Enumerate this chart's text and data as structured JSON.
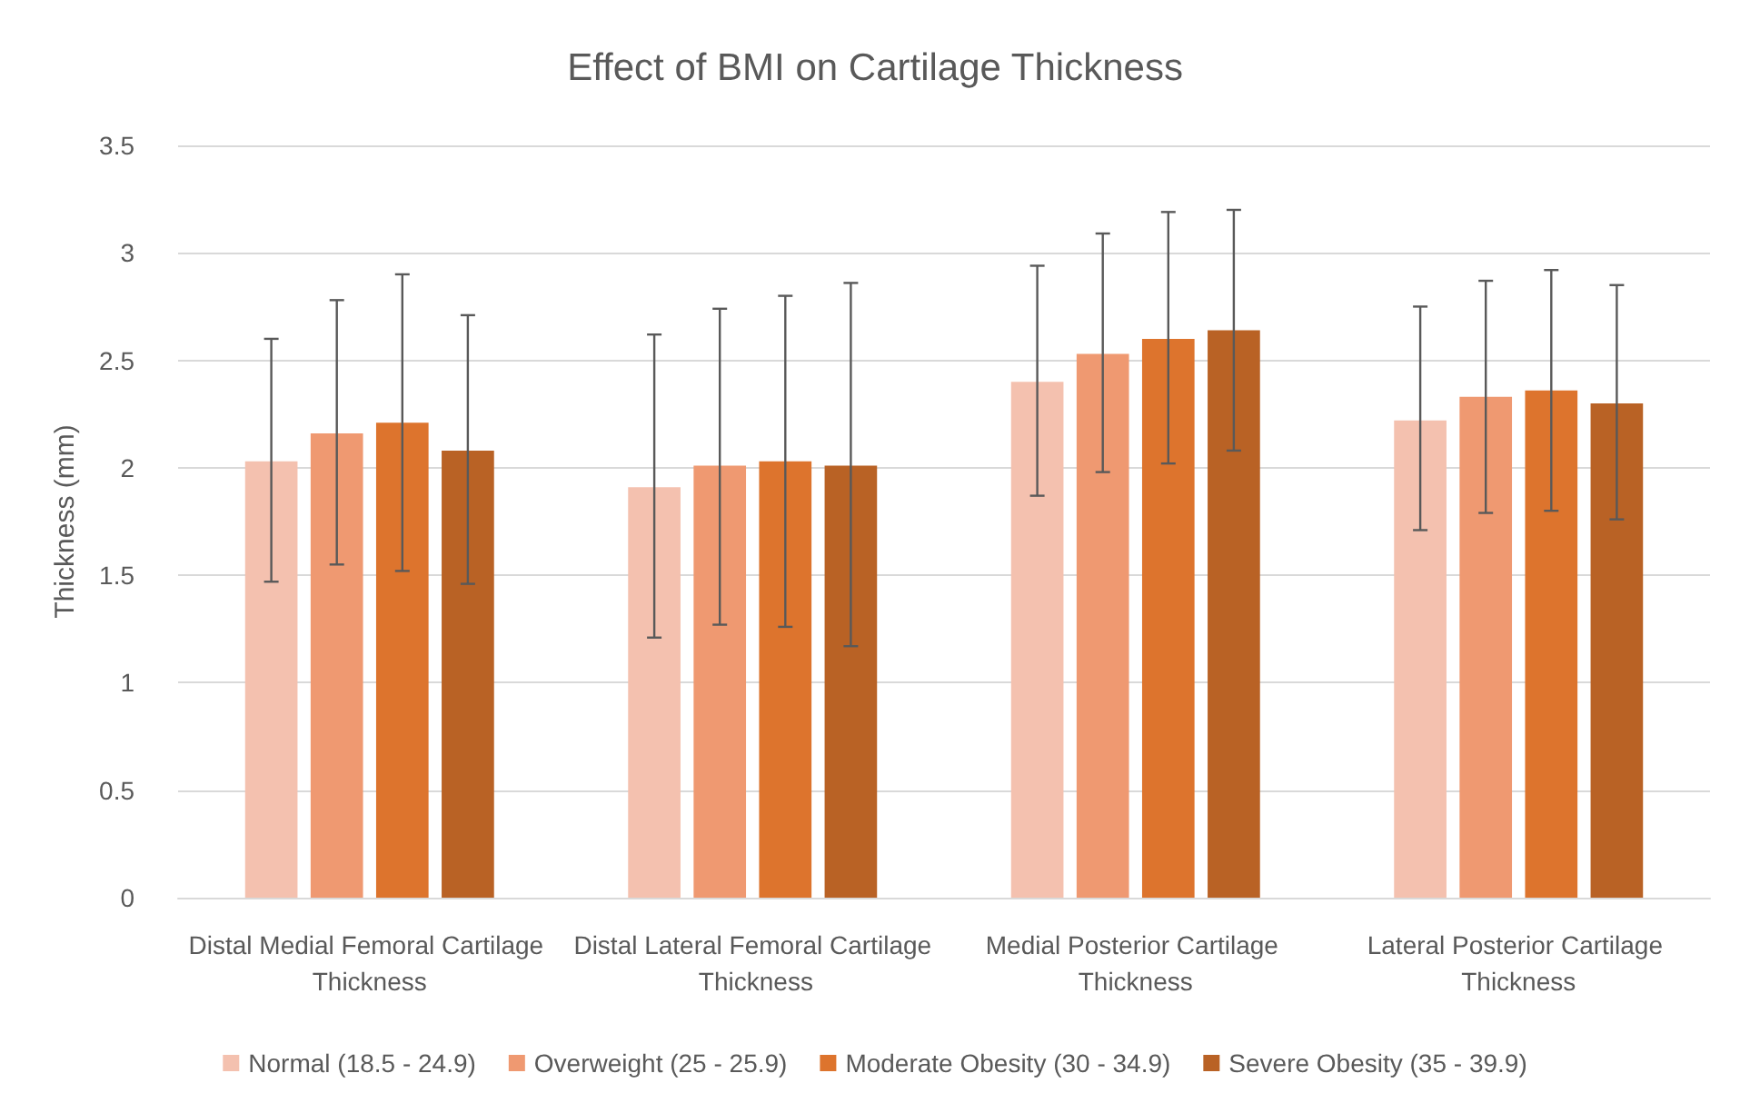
{
  "chart_data": {
    "type": "bar",
    "title": "Effect of BMI on Cartilage Thickness",
    "ylabel": "Thickness (mm)",
    "categories": [
      "Distal Medial Femoral Cartilage Thickness",
      "Distal Lateral Femoral Cartilage Thickness",
      "Medial Posterior Cartilage Thickness",
      "Lateral Posterior Cartilage Thickness"
    ],
    "series": [
      {
        "name": "Normal (18.5 - 24.9)",
        "color": "#f4c1af",
        "values": [
          2.03,
          1.91,
          2.4,
          2.22
        ],
        "errors": [
          [
            1.47,
            2.6
          ],
          [
            1.21,
            2.62
          ],
          [
            1.87,
            2.94
          ],
          [
            1.71,
            2.75
          ]
        ]
      },
      {
        "name": "Overweight (25 - 25.9)",
        "color": "#ef9971",
        "values": [
          2.16,
          2.01,
          2.53,
          2.33
        ],
        "errors": [
          [
            1.55,
            2.78
          ],
          [
            1.27,
            2.74
          ],
          [
            1.98,
            3.09
          ],
          [
            1.79,
            2.87
          ]
        ]
      },
      {
        "name": "Moderate Obesity (30 - 34.9)",
        "color": "#dd742d",
        "values": [
          2.21,
          2.03,
          2.6,
          2.36
        ],
        "errors": [
          [
            1.52,
            2.9
          ],
          [
            1.26,
            2.8
          ],
          [
            2.02,
            3.19
          ],
          [
            1.8,
            2.92
          ]
        ]
      },
      {
        "name": "Severe Obesity (35 - 39.9)",
        "color": "#b96225",
        "values": [
          2.08,
          2.01,
          2.64,
          2.3
        ],
        "errors": [
          [
            1.46,
            2.71
          ],
          [
            1.17,
            2.86
          ],
          [
            2.08,
            3.2
          ],
          [
            1.76,
            2.85
          ]
        ]
      }
    ],
    "ylim": [
      0,
      3.5
    ],
    "yticks": [
      0,
      0.5,
      1,
      1.5,
      2,
      2.5,
      3,
      3.5
    ],
    "grid": "y",
    "legend": "bottom"
  }
}
